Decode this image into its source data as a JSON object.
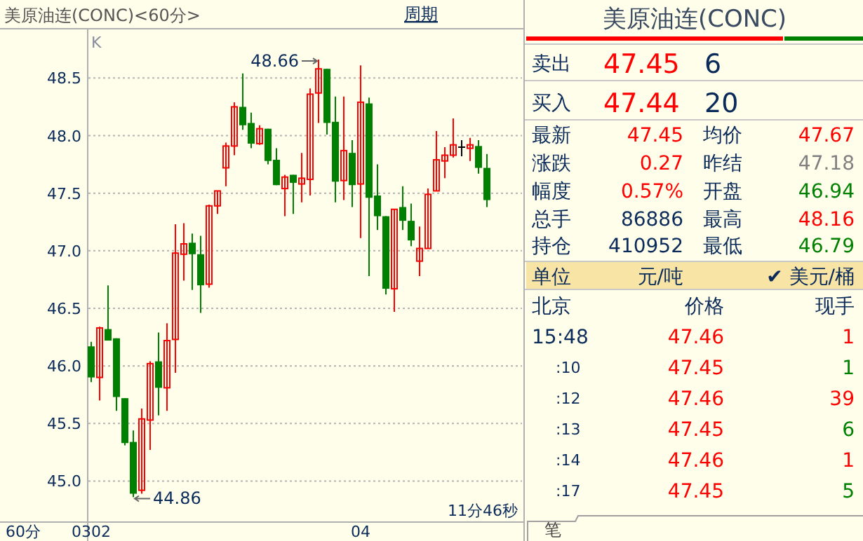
{
  "chart_data": [
    {
      "type": "candlestick",
      "title": "美原油连(CONC)<60分>",
      "categories": [
        "0302",
        null,
        null,
        null,
        null,
        null,
        null,
        null,
        null,
        null,
        null,
        null,
        null,
        null,
        null,
        null,
        null,
        null,
        null,
        null,
        null,
        null,
        null,
        null,
        null,
        null,
        null,
        null,
        null,
        null,
        null,
        null,
        "04",
        null,
        null,
        null,
        null,
        null,
        null,
        null,
        null,
        null,
        null,
        null,
        null,
        null,
        null,
        null
      ],
      "ohlc": [
        [
          46.17,
          46.21,
          45.86,
          45.9
        ],
        [
          45.9,
          46.34,
          45.7,
          46.33
        ],
        [
          46.32,
          46.7,
          46.22,
          46.22
        ],
        [
          46.24,
          46.24,
          45.61,
          45.73
        ],
        [
          45.72,
          45.72,
          45.31,
          45.33
        ],
        [
          45.34,
          45.44,
          44.86,
          44.89
        ],
        [
          44.92,
          45.63,
          44.89,
          45.54
        ],
        [
          45.53,
          46.04,
          45.27,
          46.02
        ],
        [
          46.04,
          46.29,
          45.57,
          45.81
        ],
        [
          45.81,
          46.37,
          45.61,
          46.22
        ],
        [
          46.23,
          47.23,
          45.94,
          46.98
        ],
        [
          46.97,
          47.24,
          46.74,
          47.06
        ],
        [
          47.07,
          47.15,
          46.66,
          46.97
        ],
        [
          46.97,
          47.13,
          46.46,
          46.7
        ],
        [
          46.71,
          47.4,
          46.68,
          47.39
        ],
        [
          47.39,
          47.52,
          47.32,
          47.52
        ],
        [
          47.72,
          47.94,
          47.56,
          47.91
        ],
        [
          47.91,
          48.29,
          47.83,
          48.25
        ],
        [
          48.25,
          48.54,
          48.05,
          48.09
        ],
        [
          48.11,
          48.2,
          47.89,
          47.93
        ],
        [
          47.93,
          48.09,
          47.92,
          48.06
        ],
        [
          48.06,
          48.06,
          47.75,
          47.78
        ],
        [
          47.79,
          47.89,
          47.57,
          47.57
        ],
        [
          47.54,
          47.66,
          47.3,
          47.64
        ],
        [
          47.66,
          47.66,
          47.32,
          47.59
        ],
        [
          47.58,
          47.85,
          47.42,
          47.63
        ],
        [
          47.62,
          48.41,
          47.48,
          48.36
        ],
        [
          48.37,
          48.66,
          48.11,
          48.58
        ],
        [
          48.58,
          48.58,
          48.01,
          48.11
        ],
        [
          48.12,
          48.34,
          47.42,
          47.6
        ],
        [
          47.61,
          48.34,
          47.44,
          47.87
        ],
        [
          47.85,
          47.96,
          47.38,
          47.57
        ],
        [
          47.58,
          48.61,
          47.11,
          48.29
        ],
        [
          48.28,
          48.33,
          46.78,
          47.46
        ],
        [
          47.48,
          47.75,
          47.18,
          47.3
        ],
        [
          47.3,
          47.3,
          46.62,
          46.67
        ],
        [
          46.67,
          47.36,
          46.47,
          47.36
        ],
        [
          47.38,
          47.56,
          47.18,
          47.26
        ],
        [
          47.26,
          47.41,
          47.04,
          47.09
        ],
        [
          46.91,
          47.21,
          46.78,
          47.02
        ],
        [
          47.02,
          47.54,
          47.02,
          47.49
        ],
        [
          47.52,
          48.04,
          47.52,
          47.79
        ],
        [
          47.78,
          47.9,
          47.63,
          47.83
        ],
        [
          47.83,
          48.15,
          47.81,
          47.92
        ],
        [
          47.9,
          47.96,
          47.82,
          47.9
        ],
        [
          47.89,
          47.98,
          47.78,
          47.92
        ],
        [
          47.91,
          47.96,
          47.67,
          47.72
        ],
        [
          47.72,
          47.84,
          47.38,
          47.44
        ]
      ],
      "ylim": [
        44.65,
        48.91
      ],
      "yticks": [
        {
          "value": 45,
          "label": "45.0"
        },
        {
          "value": 45.5,
          "label": "45.5"
        },
        {
          "value": 46,
          "label": "46.0"
        },
        {
          "value": 46.5,
          "label": "46.5"
        },
        {
          "value": 47,
          "label": "47.0"
        },
        {
          "value": 47.5,
          "label": "47.5"
        },
        {
          "value": 48,
          "label": "48.0"
        },
        {
          "value": 48.5,
          "label": "48.5"
        }
      ],
      "grid": "y",
      "annotations": [
        "48.66",
        "44.86",
        "K",
        "60分",
        "11分46秒",
        "周期"
      ]
    },
    {
      "type": "other",
      "title": "美原油连(CONC)",
      "annotations": [
        "卖出",
        "47.45",
        "6",
        "买入",
        "47.44",
        "20",
        "最新",
        "47.45",
        "均价",
        "47.67",
        "涨跌",
        "0.27",
        "昨结",
        "47.18",
        "幅度",
        "0.57%",
        "开盘",
        "46.94",
        "总手",
        "86886",
        "最高",
        "48.16",
        "持仓",
        "410952",
        "最低",
        "46.79",
        "单位",
        "元/吨",
        "✔ 美元/桶",
        "北京",
        "价格",
        "现手",
        "15:48",
        "47.46",
        "1",
        ":10",
        "47.45",
        "1",
        ":12",
        "47.46",
        "39",
        ":13",
        "47.45",
        "6",
        ":14",
        "47.46",
        "1",
        ":17",
        "47.45",
        "5",
        "笔"
      ]
    }
  ]
}
